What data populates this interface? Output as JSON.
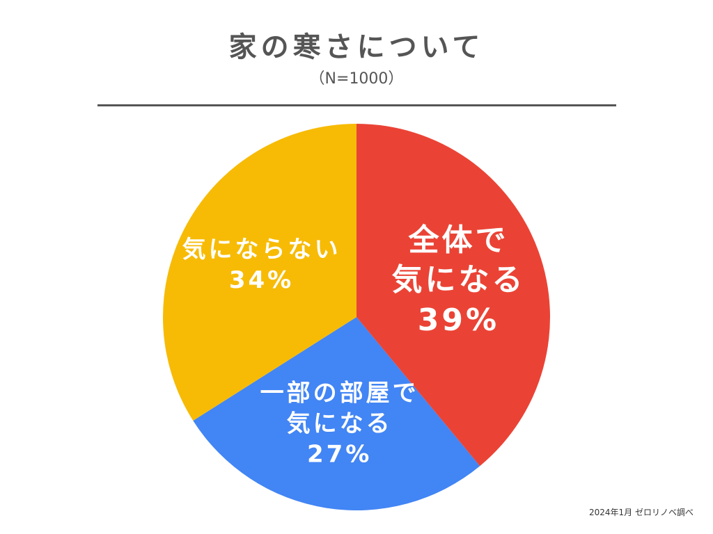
{
  "chart_data": {
    "type": "pie",
    "title": "家の寒さについて",
    "subtitle": "（N=1000）",
    "categories": [
      "全体で\n気になる",
      "一部の部屋で\n気になる",
      "気にならない"
    ],
    "values": [
      39,
      27,
      34
    ],
    "value_labels": [
      "39%",
      "27%",
      "34%"
    ],
    "colors": [
      "#ea4335",
      "#4285f4",
      "#f7bb06"
    ],
    "source": "2024年1月 ゼロリノベ調べ"
  }
}
